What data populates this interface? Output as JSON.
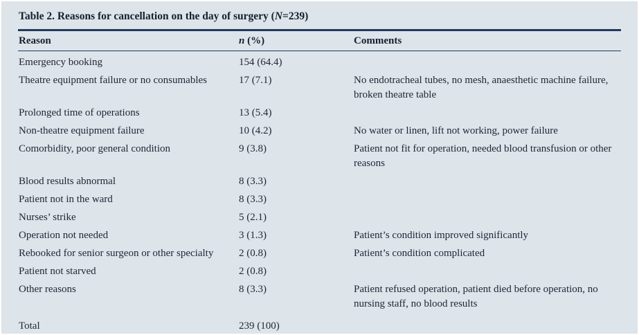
{
  "colors": {
    "background": "#dde4ea",
    "rule": "#1f3a5f",
    "text": "#1e2633"
  },
  "table": {
    "title": {
      "prefix": "Table 2. Reasons for cancellation on the day of surgery (",
      "n_var": "N",
      "suffix": "=239)"
    },
    "headers": {
      "reason": "Reason",
      "n_italic": "n",
      "n_rest": " (%)",
      "comments": "Comments"
    },
    "rows": [
      {
        "reason": "Emergency booking",
        "n": "154 (64.4)",
        "comments": ""
      },
      {
        "reason": "Theatre equipment failure or no consumables",
        "n": "17 (7.1)",
        "comments": "No endotracheal tubes, no mesh, anaesthetic machine failure, broken theatre table"
      },
      {
        "reason": "Prolonged time of operations",
        "n": "13 (5.4)",
        "comments": ""
      },
      {
        "reason": "Non-theatre equipment failure",
        "n": "10 (4.2)",
        "comments": "No water or linen, lift not working, power failure"
      },
      {
        "reason": "Comorbidity, poor general condition",
        "n": "9 (3.8)",
        "comments": "Patient not fit for operation, needed blood transfusion or other reasons"
      },
      {
        "reason": "Blood results abnormal",
        "n": "8 (3.3)",
        "comments": ""
      },
      {
        "reason": "Patient not in the ward",
        "n": "8 (3.3)",
        "comments": ""
      },
      {
        "reason": "Nurses’ strike",
        "n": "5 (2.1)",
        "comments": ""
      },
      {
        "reason": "Operation not needed",
        "n": "3 (1.3)",
        "comments": "Patient’s condition improved significantly"
      },
      {
        "reason": "Rebooked for senior surgeon or other specialty",
        "n": "2 (0.8)",
        "comments": "Patient’s condition complicated"
      },
      {
        "reason": "Patient not starved",
        "n": "2 (0.8)",
        "comments": ""
      },
      {
        "reason": "Other reasons",
        "n": "8 (3.3)",
        "comments": "Patient refused operation, patient died before operation, no nursing staff, no blood results"
      },
      {
        "reason": "Total",
        "n": "239 (100)",
        "comments": ""
      }
    ]
  }
}
